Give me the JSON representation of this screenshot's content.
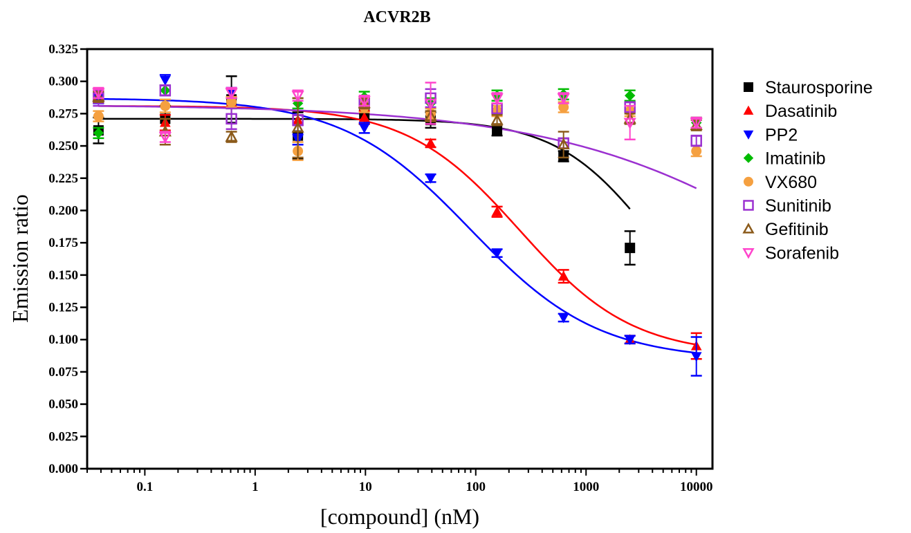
{
  "chart_data": {
    "type": "scatter",
    "title": "ACVR2B",
    "xlabel": "[compound] (nM)",
    "ylabel": "Emission ratio",
    "x_scale": "log",
    "xlim": [
      0.03,
      14000
    ],
    "ylim": [
      0,
      0.325
    ],
    "x_ticks": [
      {
        "value": 0.1,
        "label": "0.1"
      },
      {
        "value": 1,
        "label": "1"
      },
      {
        "value": 10,
        "label": "10"
      },
      {
        "value": 100,
        "label": "100"
      },
      {
        "value": 1000,
        "label": "1000"
      },
      {
        "value": 10000,
        "label": "10000"
      }
    ],
    "y_ticks": [
      "0.000",
      "0.025",
      "0.050",
      "0.075",
      "0.100",
      "0.125",
      "0.150",
      "0.175",
      "0.200",
      "0.225",
      "0.250",
      "0.275",
      "0.300",
      "0.325"
    ],
    "legend_position": "right",
    "x": [
      0.038,
      0.153,
      0.61,
      2.44,
      9.77,
      39,
      156,
      625,
      2500,
      10000
    ],
    "series": [
      {
        "name": "Staurosporine",
        "color": "#000000",
        "marker": "square-filled",
        "values": [
          0.262,
          0.271,
          0.286,
          0.258,
          0.275,
          0.27,
          0.262,
          0.242,
          0.171,
          null
        ],
        "errors": [
          0.01,
          0.01,
          0.018,
          0.018,
          0.008,
          0.006,
          0.004,
          0.004,
          0.013,
          null
        ],
        "fit": {
          "bottom": 0.09,
          "top": 0.271,
          "logEC50": 3.6,
          "hill": 1.0,
          "x_end": 2500
        }
      },
      {
        "name": "Dasatinib",
        "color": "#ff0000",
        "marker": "triangle-up-filled",
        "values": [
          0.288,
          0.268,
          0.284,
          0.27,
          0.272,
          0.252,
          0.199,
          0.149,
          0.1,
          0.095
        ],
        "errors": [
          0.004,
          0.006,
          0.004,
          0.004,
          0.005,
          0.003,
          0.004,
          0.005,
          0.003,
          0.01
        ],
        "fit": {
          "bottom": 0.088,
          "top": 0.281,
          "logEC50": 2.4,
          "hill": 0.85
        }
      },
      {
        "name": "PP2",
        "color": "#0000ff",
        "marker": "triangle-down-filled",
        "values": [
          0.287,
          0.301,
          0.291,
          0.255,
          0.264,
          0.225,
          0.167,
          0.117,
          0.1,
          0.087
        ],
        "errors": [
          0.004,
          0.004,
          0.004,
          0.004,
          0.004,
          0.003,
          0.003,
          0.003,
          0.003,
          0.015
        ],
        "fit": {
          "bottom": 0.084,
          "top": 0.287,
          "logEC50": 1.95,
          "hill": 0.75
        }
      },
      {
        "name": "Imatinib",
        "color": "#00bb00",
        "marker": "diamond-filled",
        "values": [
          0.26,
          0.293,
          0.283,
          0.283,
          0.288,
          0.283,
          0.289,
          0.29,
          0.289,
          0.268
        ],
        "errors": [
          0.004,
          0.004,
          0.004,
          0.004,
          0.004,
          0.004,
          0.004,
          0.004,
          0.004,
          0.004
        ]
      },
      {
        "name": "VX680",
        "color": "#f5a040",
        "marker": "circle-filled",
        "values": [
          0.273,
          0.281,
          0.284,
          0.246,
          0.28,
          0.275,
          0.277,
          0.28,
          0.277,
          0.246
        ],
        "errors": [
          0.004,
          0.005,
          0.004,
          0.007,
          0.004,
          0.004,
          0.004,
          0.004,
          0.004,
          0.004
        ]
      },
      {
        "name": "Sunitinib",
        "color": "#9b30d0",
        "marker": "square-open",
        "values": [
          0.287,
          0.293,
          0.271,
          0.27,
          0.283,
          0.287,
          0.279,
          0.252,
          0.28,
          0.254
        ],
        "errors": [
          0.006,
          0.004,
          0.008,
          0.004,
          0.004,
          0.007,
          0.004,
          0.004,
          0.004,
          0.004
        ],
        "fit": {
          "bottom": 0.0,
          "top": 0.282,
          "logEC50": 5.5,
          "hill": 0.35
        }
      },
      {
        "name": "Gefitinib",
        "color": "#8b5a1a",
        "marker": "triangle-up-open",
        "values": [
          0.288,
          0.261,
          0.257,
          0.264,
          0.283,
          0.273,
          0.27,
          0.251,
          0.271,
          0.266
        ],
        "errors": [
          0.004,
          0.01,
          0.004,
          0.023,
          0.004,
          0.004,
          0.004,
          0.01,
          0.004,
          0.004
        ]
      },
      {
        "name": "Sorafenib",
        "color": "#ff44cc",
        "marker": "triangle-down-open",
        "values": [
          0.291,
          0.257,
          0.291,
          0.289,
          0.285,
          0.283,
          0.287,
          0.287,
          0.268,
          0.268
        ],
        "errors": [
          0.004,
          0.004,
          0.004,
          0.004,
          0.004,
          0.016,
          0.004,
          0.004,
          0.013,
          0.004
        ]
      }
    ]
  }
}
